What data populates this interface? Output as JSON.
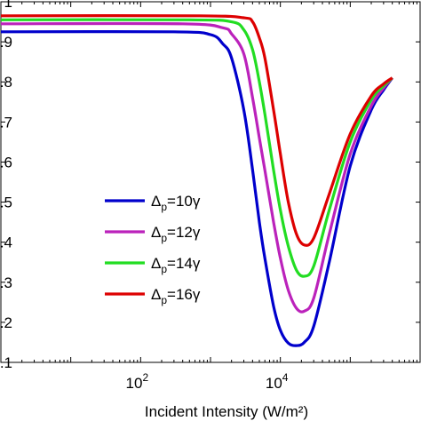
{
  "chart_data": {
    "type": "line",
    "xscale": "log",
    "xlim": [
      1,
      1000000
    ],
    "ylim": [
      0.1,
      1.0
    ],
    "xlabel": "Incident Intensity (W/m²)",
    "ylabel": "",
    "title": "",
    "grid": false,
    "legend_position": "center-left",
    "x_ticks": [
      {
        "value": 100,
        "base": "10",
        "exp": "2"
      },
      {
        "value": 10000,
        "base": "10",
        "exp": "4"
      }
    ],
    "y_ticks": [
      {
        "value": 0.1,
        "label": ".1"
      },
      {
        "value": 0.2,
        "label": ".2"
      },
      {
        "value": 0.3,
        "label": ".3"
      },
      {
        "value": 0.4,
        "label": ".4"
      },
      {
        "value": 0.5,
        "label": ".5"
      },
      {
        "value": 0.6,
        "label": ".6"
      },
      {
        "value": 0.7,
        "label": ".7"
      },
      {
        "value": 0.8,
        "label": ".8"
      },
      {
        "value": 0.9,
        "label": ".9"
      },
      {
        "value": 1.0,
        "label": "1"
      }
    ],
    "series": [
      {
        "legend": {
          "delta": "Δ",
          "sub": "p",
          "rest": "=10γ"
        },
        "color": "#0000cc",
        "points": [
          [
            1,
            0.925
          ],
          [
            300,
            0.925
          ],
          [
            1000,
            0.918
          ],
          [
            1500,
            0.895
          ],
          [
            2000,
            0.86
          ],
          [
            3000,
            0.73
          ],
          [
            4000,
            0.58
          ],
          [
            5000,
            0.45
          ],
          [
            6000,
            0.36
          ],
          [
            8000,
            0.24
          ],
          [
            10000,
            0.18
          ],
          [
            13000,
            0.148
          ],
          [
            17000,
            0.142
          ],
          [
            22000,
            0.15
          ],
          [
            30000,
            0.19
          ],
          [
            50000,
            0.35
          ],
          [
            100000,
            0.59
          ],
          [
            200000,
            0.73
          ],
          [
            300000,
            0.78
          ],
          [
            400000,
            0.81
          ]
        ]
      },
      {
        "legend": {
          "delta": "Δ",
          "sub": "p",
          "rest": "=12γ"
        },
        "color": "#bb22bb",
        "points": [
          [
            1,
            0.945
          ],
          [
            400,
            0.945
          ],
          [
            1500,
            0.935
          ],
          [
            2000,
            0.92
          ],
          [
            3000,
            0.87
          ],
          [
            4000,
            0.76
          ],
          [
            5000,
            0.66
          ],
          [
            6000,
            0.58
          ],
          [
            8000,
            0.45
          ],
          [
            10000,
            0.36
          ],
          [
            13000,
            0.28
          ],
          [
            17000,
            0.235
          ],
          [
            22000,
            0.228
          ],
          [
            30000,
            0.26
          ],
          [
            50000,
            0.42
          ],
          [
            100000,
            0.62
          ],
          [
            200000,
            0.74
          ],
          [
            300000,
            0.785
          ],
          [
            400000,
            0.81
          ]
        ]
      },
      {
        "legend": {
          "delta": "Δ",
          "sub": "p",
          "rest": "=14γ"
        },
        "color": "#22dd22",
        "points": [
          [
            1,
            0.955
          ],
          [
            500,
            0.955
          ],
          [
            2000,
            0.95
          ],
          [
            3000,
            0.93
          ],
          [
            4000,
            0.88
          ],
          [
            5000,
            0.8
          ],
          [
            6000,
            0.72
          ],
          [
            8000,
            0.58
          ],
          [
            10000,
            0.48
          ],
          [
            13000,
            0.39
          ],
          [
            17000,
            0.33
          ],
          [
            22000,
            0.315
          ],
          [
            30000,
            0.34
          ],
          [
            50000,
            0.48
          ],
          [
            100000,
            0.65
          ],
          [
            200000,
            0.755
          ],
          [
            300000,
            0.79
          ],
          [
            400000,
            0.81
          ]
        ]
      },
      {
        "legend": {
          "delta": "Δ",
          "sub": "p",
          "rest": "=16γ"
        },
        "color": "#dd0000",
        "points": [
          [
            1,
            0.965
          ],
          [
            700,
            0.965
          ],
          [
            3000,
            0.96
          ],
          [
            4000,
            0.95
          ],
          [
            5000,
            0.91
          ],
          [
            6000,
            0.86
          ],
          [
            8000,
            0.73
          ],
          [
            10000,
            0.62
          ],
          [
            13000,
            0.5
          ],
          [
            17000,
            0.42
          ],
          [
            22000,
            0.393
          ],
          [
            30000,
            0.41
          ],
          [
            50000,
            0.52
          ],
          [
            100000,
            0.67
          ],
          [
            200000,
            0.765
          ],
          [
            300000,
            0.795
          ],
          [
            400000,
            0.81
          ]
        ]
      }
    ]
  }
}
